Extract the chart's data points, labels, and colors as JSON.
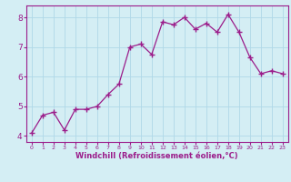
{
  "x": [
    0,
    1,
    2,
    3,
    4,
    5,
    6,
    7,
    8,
    9,
    10,
    11,
    12,
    13,
    14,
    15,
    16,
    17,
    18,
    19,
    20,
    21,
    22,
    23
  ],
  "y": [
    4.1,
    4.7,
    4.8,
    4.2,
    4.9,
    4.9,
    5.0,
    5.4,
    5.75,
    7.0,
    7.1,
    6.75,
    7.85,
    7.75,
    8.0,
    7.6,
    7.8,
    7.5,
    8.1,
    7.5,
    6.65,
    6.1,
    6.2,
    6.1
  ],
  "line_color": "#9b1c8a",
  "marker": "+",
  "bg_color": "#d4eef4",
  "grid_color": "#b0d8e8",
  "xlabel": "Windchill (Refroidissement éolien,°C)",
  "xlabel_color": "#9b1c8a",
  "tick_color": "#9b1c8a",
  "axis_color": "#9b1c8a",
  "ylim": [
    3.8,
    8.4
  ],
  "yticks": [
    4,
    5,
    6,
    7,
    8
  ],
  "xlim": [
    -0.5,
    23.5
  ],
  "xticks": [
    0,
    1,
    2,
    3,
    4,
    5,
    6,
    7,
    8,
    9,
    10,
    11,
    12,
    13,
    14,
    15,
    16,
    17,
    18,
    19,
    20,
    21,
    22,
    23
  ]
}
